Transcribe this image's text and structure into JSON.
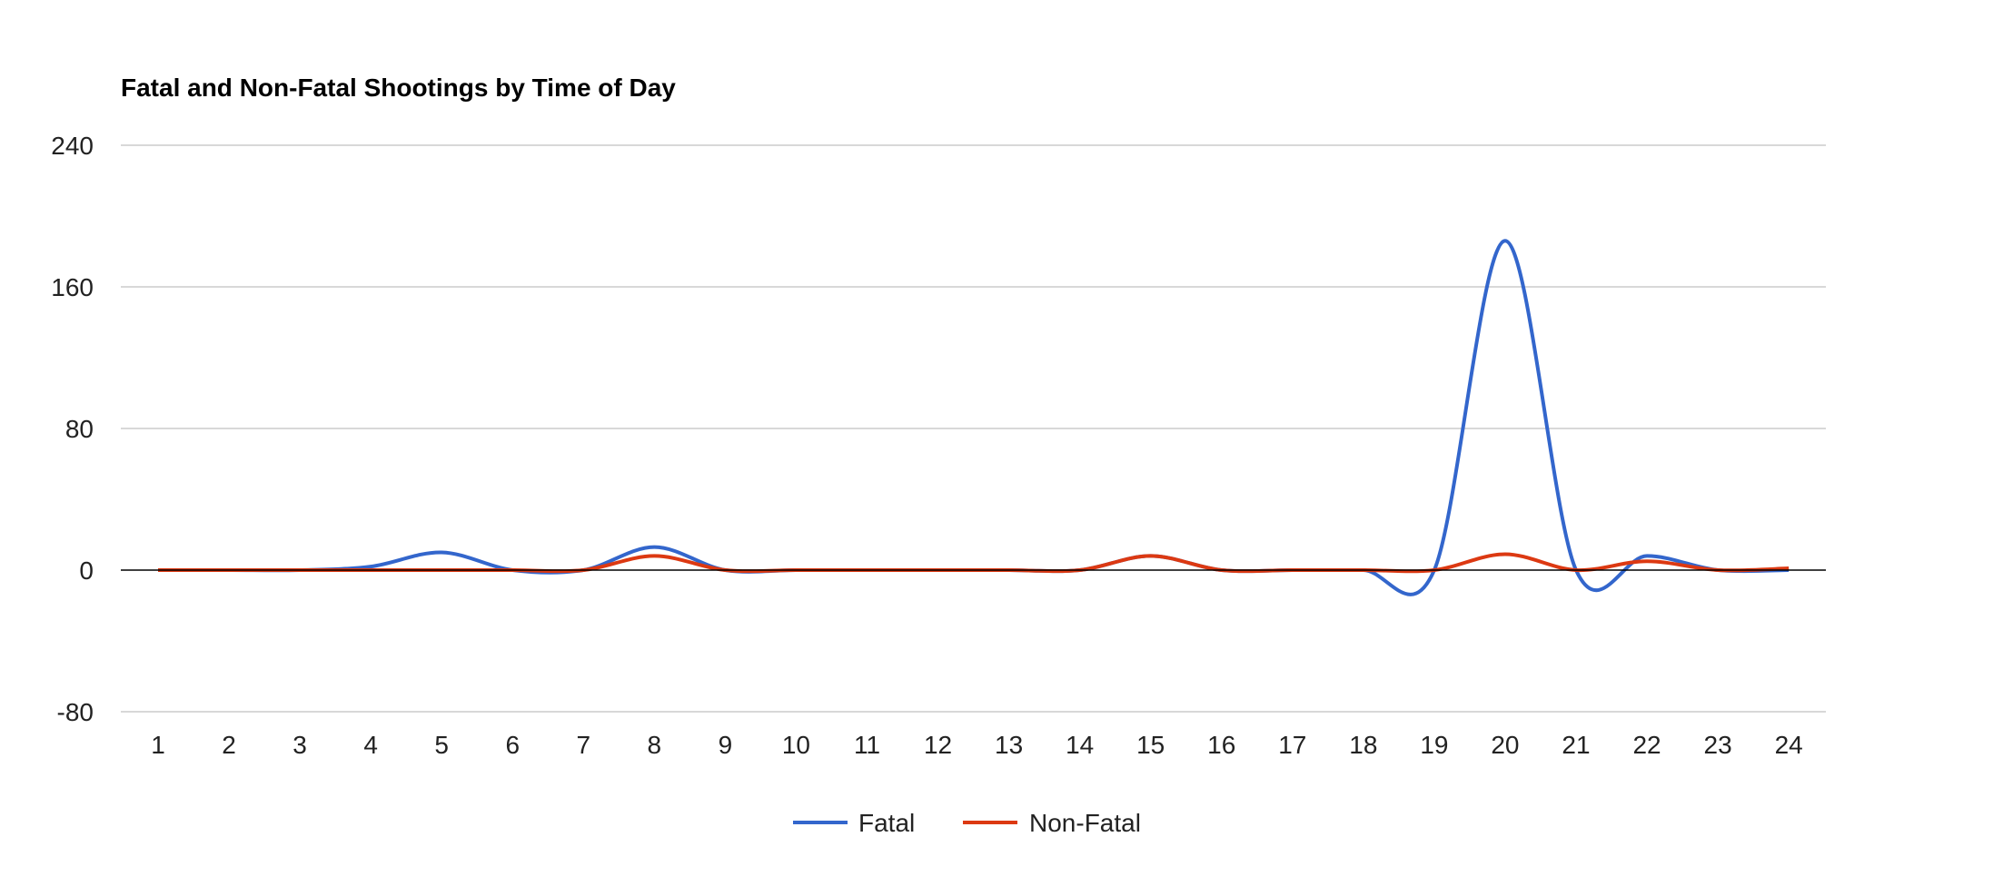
{
  "chart_data": {
    "type": "line",
    "title": "Fatal and Non-Fatal Shootings by Time of Day",
    "xlabel": "",
    "ylabel": "",
    "categories": [
      "1",
      "2",
      "3",
      "4",
      "5",
      "6",
      "7",
      "8",
      "9",
      "10",
      "11",
      "12",
      "13",
      "14",
      "15",
      "16",
      "17",
      "18",
      "19",
      "20",
      "21",
      "22",
      "23",
      "24"
    ],
    "ylim": [
      -80,
      240
    ],
    "yticks": [
      "240",
      "160",
      "80",
      "0",
      "-80"
    ],
    "ytick_values": [
      240,
      160,
      80,
      0,
      -80
    ],
    "series": [
      {
        "name": "Fatal",
        "color": "#3366cc",
        "values": [
          0,
          0,
          0,
          2,
          10,
          0,
          0,
          13,
          0,
          0,
          0,
          0,
          0,
          0,
          8,
          0,
          0,
          0,
          0,
          186,
          0,
          8,
          0,
          0
        ]
      },
      {
        "name": "Non-Fatal",
        "color": "#dc3912",
        "values": [
          0,
          0,
          0,
          0,
          0,
          0,
          0,
          8,
          0,
          0,
          0,
          0,
          0,
          0,
          8,
          0,
          0,
          0,
          0,
          9,
          0,
          5,
          0,
          1
        ]
      }
    ],
    "grid": true,
    "legend_position": "bottom",
    "colors": {
      "gridline": "#cccccc",
      "baseline": "#000000",
      "text": "#222222"
    }
  }
}
